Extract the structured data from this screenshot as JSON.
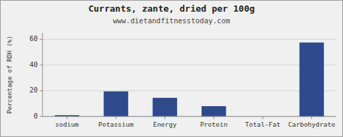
{
  "chart_data": {
    "type": "bar",
    "title": "Currants, zante, dried per 100g",
    "subtitle": "www.dietandfitnesstoday.com",
    "categories": [
      "sodium",
      "Potassium",
      "Energy",
      "Protein",
      "Total-Fat",
      "Carbohydrate"
    ],
    "values": [
      1.0,
      19.5,
      14.5,
      8.0,
      0.0,
      57.5
    ],
    "color": "#2e4a8c",
    "ylabel": "Percentage of RDH (%)",
    "ylim": [
      0,
      65
    ],
    "yticks": [
      0,
      20,
      40,
      60
    ],
    "grid": true
  }
}
